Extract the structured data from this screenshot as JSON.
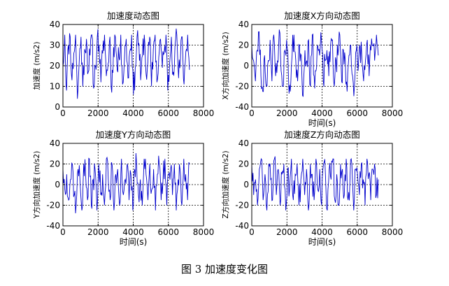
{
  "figure_caption": "图 3  加速度变化图",
  "style": {
    "line_color": "#0000cc",
    "axis_color": "#000000",
    "grid_color": "#000000"
  },
  "chart_data": [
    {
      "type": "line",
      "title": "加速度动态图",
      "xlabel": "",
      "ylabel": "加速度 (m/s2)",
      "xlim": [
        0,
        8000
      ],
      "ylim": [
        0,
        40
      ],
      "xticks": [
        0,
        2000,
        4000,
        6000,
        8000
      ],
      "yticks": [
        0,
        10,
        20,
        30,
        40
      ],
      "grid": true,
      "seed": 11,
      "series": [
        {
          "x_range": [
            0,
            7200
          ],
          "values": [
            20,
            35,
            8,
            30,
            34,
            13,
            26,
            35,
            4,
            22,
            34,
            10,
            28,
            33,
            17,
            25,
            35,
            9,
            20,
            34,
            30,
            12,
            26,
            35,
            15,
            21,
            34,
            7,
            29,
            34,
            18,
            24,
            35,
            11,
            23,
            33,
            14,
            27,
            35,
            6,
            19,
            34,
            31,
            13,
            25,
            35,
            16,
            22,
            34,
            10,
            28,
            35,
            12,
            24,
            33,
            19,
            26,
            35,
            8,
            21,
            34,
            17,
            30,
            35,
            14,
            23,
            34,
            11,
            27,
            35,
            18
          ]
        }
      ]
    },
    {
      "type": "line",
      "title": "加速度X方向动态图",
      "xlabel": "时间(s)",
      "ylabel": "X方向加速度 (m/s2)",
      "xlim": [
        0,
        8000
      ],
      "ylim": [
        -40,
        40
      ],
      "xticks": [
        0,
        2000,
        4000,
        6000,
        8000
      ],
      "yticks": [
        -40,
        -20,
        0,
        20,
        40
      ],
      "grid": true,
      "seed": 23,
      "series": [
        {
          "x_range": [
            0,
            7200
          ],
          "values": [
            20,
            5,
            -15,
            15,
            33,
            -10,
            -25,
            10,
            -20,
            5,
            25,
            -15,
            30,
            -10,
            5,
            35,
            -5,
            -20,
            15,
            25,
            -10,
            -25,
            10,
            30,
            5,
            -15,
            20,
            10,
            -30,
            15,
            5,
            25,
            -20,
            30,
            -10,
            -5,
            20,
            10,
            25,
            -15,
            5,
            15,
            -10,
            20,
            25,
            -20,
            5,
            10,
            30,
            -15,
            15,
            5,
            -25,
            10,
            20,
            -10,
            -20,
            15,
            -5,
            20,
            10,
            -15,
            5,
            25,
            -10,
            15,
            20,
            5,
            30,
            10
          ]
        }
      ]
    },
    {
      "type": "line",
      "title": "加速度Y方向动态图",
      "xlabel": "时间(s)",
      "ylabel": "Y方向加速度 (m/s2)",
      "xlim": [
        0,
        8000
      ],
      "ylim": [
        -40,
        40
      ],
      "xticks": [
        0,
        2000,
        4000,
        6000,
        8000
      ],
      "yticks": [
        -40,
        -20,
        0,
        20,
        40
      ],
      "grid": true,
      "seed": 37,
      "series": [
        {
          "x_range": [
            0,
            7200
          ],
          "values": [
            15,
            -5,
            10,
            -15,
            5,
            20,
            -10,
            -20,
            15,
            5,
            -25,
            20,
            10,
            -15,
            25,
            -20,
            5,
            15,
            -25,
            20,
            -10,
            10,
            -20,
            25,
            5,
            -15,
            20,
            -25,
            10,
            15,
            -20,
            25,
            -10,
            5,
            20,
            -15,
            10,
            -25,
            15,
            20,
            -10,
            5,
            -20,
            25,
            10,
            -15,
            20,
            -5,
            15,
            -25,
            10,
            20,
            -15,
            5,
            25,
            -20,
            10,
            15,
            -10,
            20,
            -25,
            5,
            15,
            -20,
            25,
            10,
            -15,
            20
          ]
        }
      ]
    },
    {
      "type": "line",
      "title": "加速度Z方向动态图",
      "xlabel": "时间(s)",
      "ylabel": "Z方向加速度 (m/s2)",
      "xlim": [
        0,
        8000
      ],
      "ylim": [
        -40,
        40
      ],
      "xticks": [
        0,
        2000,
        4000,
        6000,
        8000
      ],
      "yticks": [
        -40,
        -20,
        0,
        20,
        40
      ],
      "grid": true,
      "seed": 51,
      "series": [
        {
          "x_range": [
            0,
            7200
          ],
          "values": [
            20,
            -10,
            5,
            -20,
            15,
            25,
            -15,
            10,
            -25,
            20,
            5,
            -15,
            25,
            -10,
            15,
            -20,
            10,
            20,
            -25,
            15,
            -5,
            25,
            -15,
            10,
            20,
            -20,
            5,
            25,
            -10,
            15,
            -25,
            20,
            10,
            -15,
            25,
            -5,
            15,
            -20,
            20,
            10,
            -25,
            15,
            5,
            25,
            -15,
            10,
            -20,
            20,
            15,
            -10,
            25,
            -15,
            5,
            20,
            -25,
            15,
            10,
            -10,
            20,
            5,
            -20,
            25,
            10,
            -15,
            15,
            20,
            -10,
            5
          ]
        }
      ]
    }
  ]
}
